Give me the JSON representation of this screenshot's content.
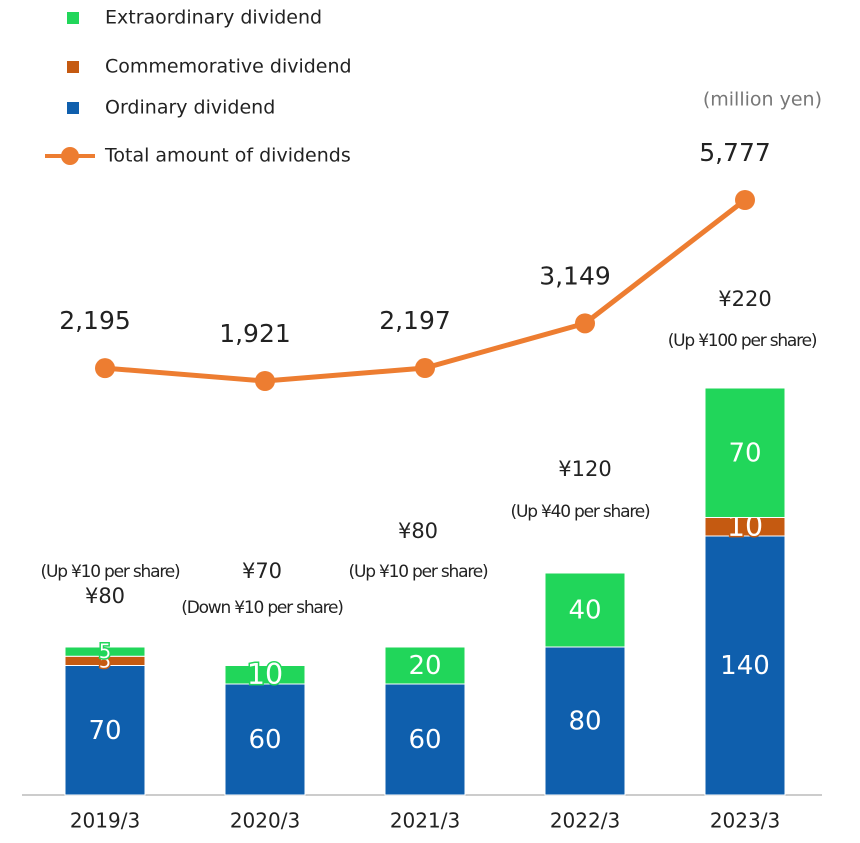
{
  "chart_data": {
    "type": "bar-line",
    "unit_label": "(million yen)",
    "categories": [
      "2019/3",
      "2020/3",
      "2021/3",
      "2022/3",
      "2023/3"
    ],
    "series": [
      {
        "name": "Ordinary dividend",
        "color": "#0f5fad",
        "values": [
          70,
          60,
          60,
          80,
          140
        ]
      },
      {
        "name": "Commemorative dividend",
        "color": "#c55a11",
        "values": [
          5,
          null,
          null,
          null,
          10
        ]
      },
      {
        "name": "Extraordinary dividend",
        "color": "#21d65a",
        "values": [
          5,
          10,
          20,
          40,
          70
        ]
      }
    ],
    "line": {
      "name": "Total amount of dividends",
      "color": "#ed7d31",
      "values": [
        2195,
        1921,
        2197,
        3149,
        5777
      ],
      "value_labels": [
        "2,195",
        "1,921",
        "2,197",
        "3,149",
        "5,777"
      ]
    },
    "total_labels": [
      "¥80",
      "¥70",
      "¥80",
      "¥120",
      "¥220"
    ],
    "change_labels": [
      "(Up ¥10 per share)",
      "(Down ¥10 per share)",
      "(Up ¥10 per share)",
      "(Up ¥40 per share)",
      "(Up ¥100 per share)"
    ]
  }
}
